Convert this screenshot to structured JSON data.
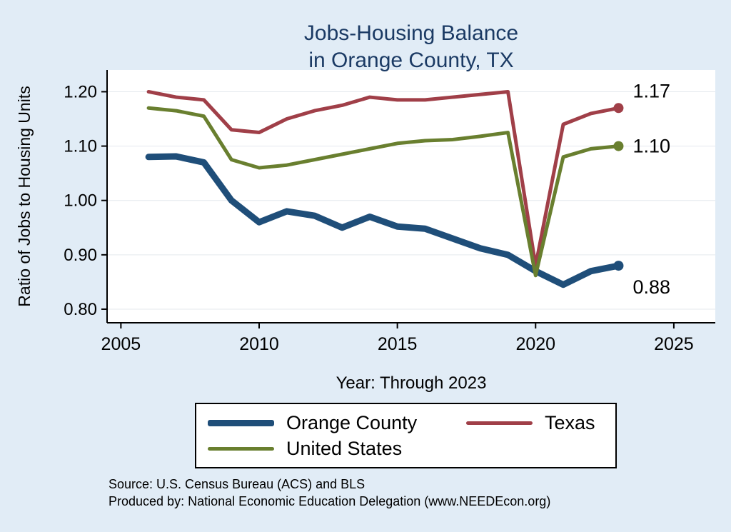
{
  "title": {
    "line1": "Jobs-Housing Balance",
    "line2": "in Orange County, TX"
  },
  "footer": {
    "source": "Source: U.S. Census Bureau (ACS) and BLS",
    "produced": "Produced by: National Economic Education Delegation (www.NEEDEcon.org)"
  },
  "colors": {
    "background": "#e1ecf6",
    "plot_background": "#ffffff",
    "title_text": "#1b3a64",
    "axis": "#000000",
    "grid": "#e4e9ee"
  },
  "chart_data": {
    "type": "line",
    "title": "Jobs-Housing Balance in Orange County, TX",
    "xlabel": "Year: Through 2023",
    "ylabel": "Ratio of Jobs to Housing Units",
    "xlim": [
      2004.5,
      2026.5
    ],
    "ylim": [
      0.775,
      1.24
    ],
    "x_ticks": [
      2005,
      2010,
      2015,
      2020,
      2025
    ],
    "y_ticks": [
      "0.80",
      "0.90",
      "1.00",
      "1.10",
      "1.20"
    ],
    "grid": true,
    "legend_position": "bottom",
    "end_dot_radius": 7,
    "x": [
      2006,
      2007,
      2008,
      2009,
      2010,
      2011,
      2012,
      2013,
      2014,
      2015,
      2016,
      2017,
      2018,
      2019,
      2020,
      2021,
      2022,
      2023
    ],
    "series": [
      {
        "name": "Orange County",
        "color": "#1f4e79",
        "line_width": 9,
        "end_label": "0.88",
        "end_label_dy": 39,
        "values": [
          1.08,
          1.081,
          1.07,
          1.0,
          0.96,
          0.98,
          0.972,
          0.95,
          0.97,
          0.952,
          0.948,
          0.93,
          0.912,
          0.9,
          0.87,
          0.845,
          0.87,
          0.88
        ]
      },
      {
        "name": "Texas",
        "color": "#a03f48",
        "line_width": 5,
        "end_label": "1.17",
        "end_label_dy": -15,
        "values": [
          1.2,
          1.19,
          1.185,
          1.13,
          1.125,
          1.15,
          1.165,
          1.175,
          1.19,
          1.185,
          1.185,
          1.19,
          1.195,
          1.2,
          0.88,
          1.14,
          1.16,
          1.17
        ]
      },
      {
        "name": "United States",
        "color": "#697f2f",
        "line_width": 5,
        "end_label": "1.10",
        "end_label_dy": 9,
        "values": [
          1.17,
          1.165,
          1.155,
          1.075,
          1.06,
          1.065,
          1.075,
          1.085,
          1.095,
          1.105,
          1.11,
          1.112,
          1.118,
          1.125,
          0.862,
          1.08,
          1.095,
          1.1
        ]
      }
    ]
  }
}
